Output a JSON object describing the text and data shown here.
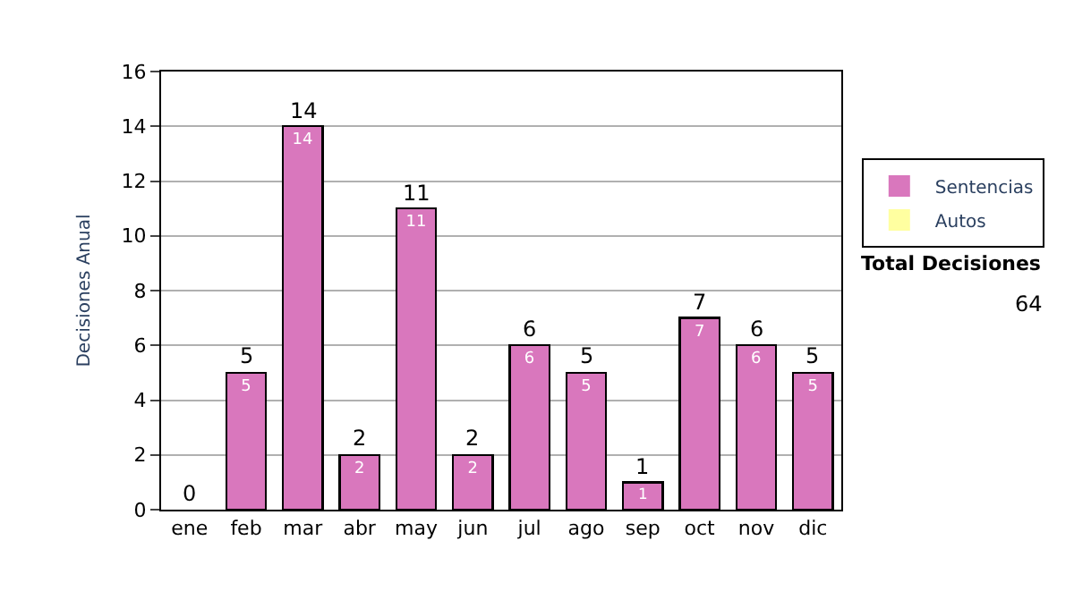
{
  "chart_data": {
    "type": "bar",
    "ylabel": "Decisiones Anual",
    "categories": [
      "ene",
      "feb",
      "mar",
      "abr",
      "may",
      "jun",
      "jul",
      "ago",
      "sep",
      "oct",
      "nov",
      "dic"
    ],
    "series": [
      {
        "name": "Sentencias",
        "color": "#d977bd",
        "values": [
          0,
          5,
          14,
          2,
          11,
          2,
          6,
          5,
          1,
          7,
          6,
          5
        ],
        "value_labels": [
          null,
          "5",
          "14",
          "2",
          "11",
          "2",
          "6",
          "5",
          "1",
          "7",
          "6",
          "5"
        ]
      },
      {
        "name": "Autos",
        "color": "#ffffa0",
        "values": [
          null,
          null,
          null,
          null,
          null,
          null,
          null,
          null,
          null,
          null,
          null,
          null
        ]
      }
    ],
    "stacked": true,
    "totals": [
      "0",
      "5",
      "14",
      "2",
      "11",
      "2",
      "6",
      "5",
      "1",
      "7",
      "6",
      "5"
    ],
    "ylim": [
      0,
      16
    ],
    "yticks": [
      0,
      2,
      4,
      6,
      8,
      10,
      12,
      14,
      16
    ],
    "grid": "y",
    "legend": "right",
    "annotations": [
      "Total Decisiones",
      "64"
    ]
  }
}
